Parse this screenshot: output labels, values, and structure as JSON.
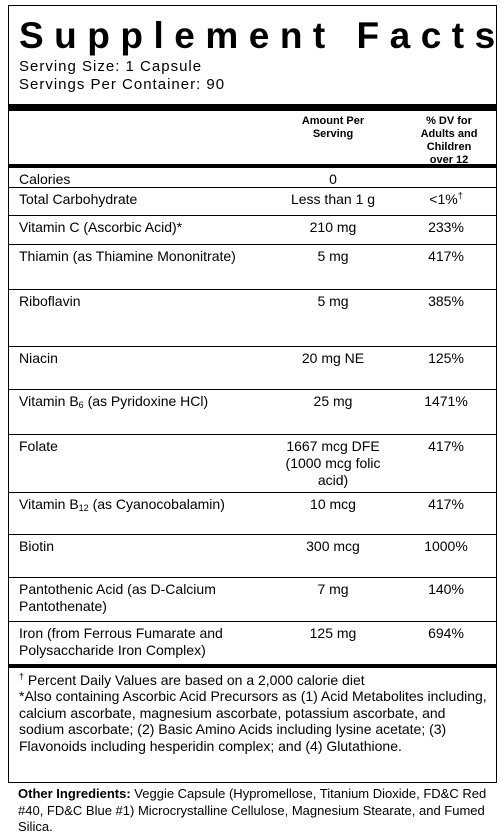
{
  "header": {
    "title": "Supplement Facts",
    "serving_size": "Serving Size: 1 Capsule",
    "servings_per_container": "Servings Per Container: 90"
  },
  "table": {
    "columns": [
      "Amount Per Serving",
      "% DV for Adults and Children over 12"
    ],
    "rows": [
      {
        "name": "Calories",
        "amount": "0"
      },
      {
        "name": "Total Carbohydrate",
        "amount": "Less than 1 g",
        "dv": "<1%",
        "dv_sup": "†"
      },
      {
        "name": "Vitamin C (Ascorbic Acid)*",
        "amount": "210 mg",
        "dv": "233%"
      },
      {
        "name": "Thiamin (as Thiamine Mononitrate)",
        "amount": "5 mg",
        "dv": "417%"
      },
      {
        "name": "Riboflavin",
        "amount": "5 mg",
        "dv": "385%"
      },
      {
        "name": "Niacin",
        "amount": "20 mg NE",
        "dv": "125%"
      },
      {
        "name": "Vitamin B",
        "name_sub": "6",
        "name_rest": " (as Pyridoxine HCl)",
        "amount": "25 mg",
        "dv": "1471%"
      },
      {
        "name": "Folate",
        "amount": "1667 mcg DFE (1000 mcg folic acid)",
        "dv": "417%"
      },
      {
        "name": "Vitamin B",
        "name_sub": "12",
        "name_rest": " (as Cyanocobalamin)",
        "amount": "10 mcg",
        "dv": "417%"
      },
      {
        "name": "Biotin",
        "amount": "300 mcg",
        "dv": "1000%"
      },
      {
        "name": "Pantothenic Acid (as D-Calcium Pantothenate)",
        "amount": "7 mg",
        "dv": "140%"
      },
      {
        "name": "Iron (from Ferrous Fumarate and Polysaccharide Iron Complex)",
        "amount": "125 mg",
        "dv": "694%"
      }
    ]
  },
  "footnotes": {
    "dagger": "†",
    "daily_values": " Percent Daily Values are based on a 2,000 calorie diet",
    "also_containing": "*Also containing Ascorbic Acid Precursors as (1) Acid Metabolites including, calcium ascorbate, magnesium ascorbate, potassium ascorbate, and sodium ascorbate; (2) Basic Amino Acids including lysine acetate; (3) Flavonoids including hesperidin complex; and (4) Glutathione."
  },
  "other_ingredients": {
    "label": "Other Ingredients:",
    "text": " Veggie Capsule (Hypromellose, Titanium Dioxide, FD&C Red #40, FD&C Blue #1) Microcrystalline Cellulose, Magnesium Stearate, and Fumed Silica."
  }
}
